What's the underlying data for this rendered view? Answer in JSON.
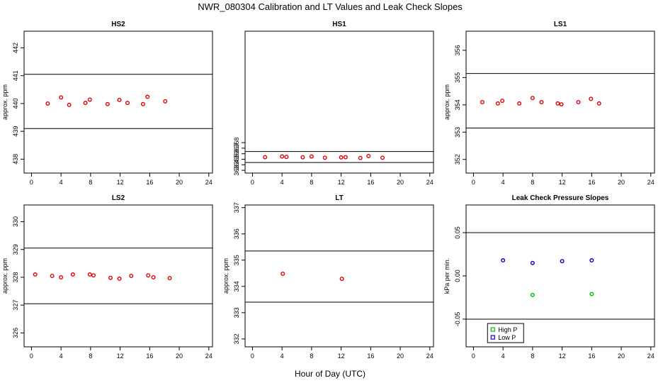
{
  "figure": {
    "title": "NWR_080304  Calibration and LT Values and Leak Check Slopes",
    "xlabel": "Hour of Day (UTC)"
  },
  "colors": {
    "points": "#e00000",
    "high_p": "#00bb00",
    "low_p": "#0000cc",
    "axis": "#000000"
  },
  "chart_data": [
    {
      "type": "scatter",
      "title": "HS2",
      "ylabel": "approx. ppm",
      "xlim": [
        -1,
        24.5
      ],
      "ylim": [
        437.5,
        442.6
      ],
      "xticks": [
        0,
        4,
        8,
        12,
        16,
        20,
        24
      ],
      "yticks": [
        438,
        439,
        440,
        441,
        442
      ],
      "hlines": [
        441.05,
        439.1
      ],
      "series": [
        {
          "x": [
            2.2,
            4.0,
            5.1,
            7.3,
            7.9,
            10.3,
            11.9,
            13.0,
            15.1,
            15.7,
            18.1
          ],
          "y": [
            440.0,
            440.22,
            439.95,
            440.02,
            440.14,
            439.98,
            440.13,
            440.02,
            439.98,
            440.24,
            440.08
          ]
        }
      ]
    },
    {
      "type": "scatter",
      "title": "HS1",
      "ylabel": "",
      "xlim": [
        -1,
        24.5
      ],
      "ylim": [
        362.5,
        388.15
      ],
      "xticks": [
        0,
        4,
        8,
        12,
        16,
        20,
        24
      ],
      "yticks": [
        363,
        364,
        365,
        366,
        367,
        368
      ],
      "hlines": [
        366.4,
        364.4
      ],
      "series": [
        {
          "x": [
            1.7,
            4.0,
            4.6,
            6.8,
            8.0,
            9.8,
            12.0,
            12.6,
            14.6,
            15.7,
            17.6
          ],
          "y": [
            365.37,
            365.5,
            365.42,
            365.35,
            365.5,
            365.28,
            365.33,
            365.37,
            365.23,
            365.57,
            365.28
          ]
        }
      ]
    },
    {
      "type": "scatter",
      "title": "LS1",
      "ylabel": "approx. ppm",
      "xlim": [
        -1,
        24.5
      ],
      "ylim": [
        351.5,
        356.7
      ],
      "xticks": [
        0,
        4,
        8,
        12,
        16,
        20,
        24
      ],
      "yticks": [
        352,
        353,
        354,
        355,
        356
      ],
      "hlines": [
        355.15,
        353.15
      ],
      "series": [
        {
          "x": [
            1.2,
            3.3,
            3.9,
            6.2,
            8.0,
            9.2,
            11.4,
            11.9,
            14.2,
            15.9,
            17.0
          ],
          "y": [
            354.1,
            354.05,
            354.15,
            354.05,
            354.25,
            354.1,
            354.05,
            354.02,
            354.1,
            354.22,
            354.05
          ]
        }
      ]
    },
    {
      "type": "scatter",
      "title": "LS2",
      "ylabel": "approx. ppm",
      "xlim": [
        -1,
        24.5
      ],
      "ylim": [
        325.5,
        330.6
      ],
      "xticks": [
        0,
        4,
        8,
        12,
        16,
        20,
        24
      ],
      "yticks": [
        326,
        327,
        328,
        329,
        330
      ],
      "hlines": [
        329.05,
        327.05
      ],
      "series": [
        {
          "x": [
            0.5,
            2.8,
            4.0,
            5.6,
            7.9,
            8.4,
            10.7,
            11.9,
            13.5,
            15.8,
            16.5,
            18.7
          ],
          "y": [
            328.1,
            328.05,
            328.0,
            328.1,
            328.1,
            328.07,
            327.98,
            327.95,
            328.05,
            328.07,
            328.0,
            327.97
          ]
        }
      ]
    },
    {
      "type": "scatter",
      "title": "LT",
      "ylabel": "approx. ppm",
      "xlim": [
        -1,
        24.5
      ],
      "ylim": [
        331.7,
        337.1
      ],
      "xticks": [
        0,
        4,
        8,
        12,
        16,
        20,
        24
      ],
      "yticks": [
        332,
        333,
        334,
        335,
        336,
        337
      ],
      "hlines": [
        335.35,
        333.4
      ],
      "series": [
        {
          "x": [
            4.1,
            12.1
          ],
          "y": [
            334.48,
            334.29
          ]
        }
      ]
    },
    {
      "type": "scatter",
      "title": "Leak Check Pressure Slopes",
      "ylabel": "kPa per min.",
      "xlim": [
        -1,
        24.5
      ],
      "ylim": [
        -0.082,
        0.082
      ],
      "xticks": [
        0,
        4,
        8,
        12,
        16,
        20,
        24
      ],
      "yticks": [
        -0.05,
        0.0,
        0.05
      ],
      "ytick_labels": [
        "-0.05",
        "0.00",
        "0.05"
      ],
      "hlines": [
        0.05,
        -0.05
      ],
      "legend": {
        "location": "bottom-left",
        "entries": [
          "High P",
          "Low P"
        ]
      },
      "series": [
        {
          "name": "High P",
          "x": [
            8.0,
            16.0
          ],
          "y": [
            -0.022,
            -0.021
          ]
        },
        {
          "name": "Low P",
          "x": [
            4.0,
            8.0,
            12.0,
            16.0
          ],
          "y": [
            0.018,
            0.015,
            0.017,
            0.018
          ]
        }
      ]
    }
  ]
}
